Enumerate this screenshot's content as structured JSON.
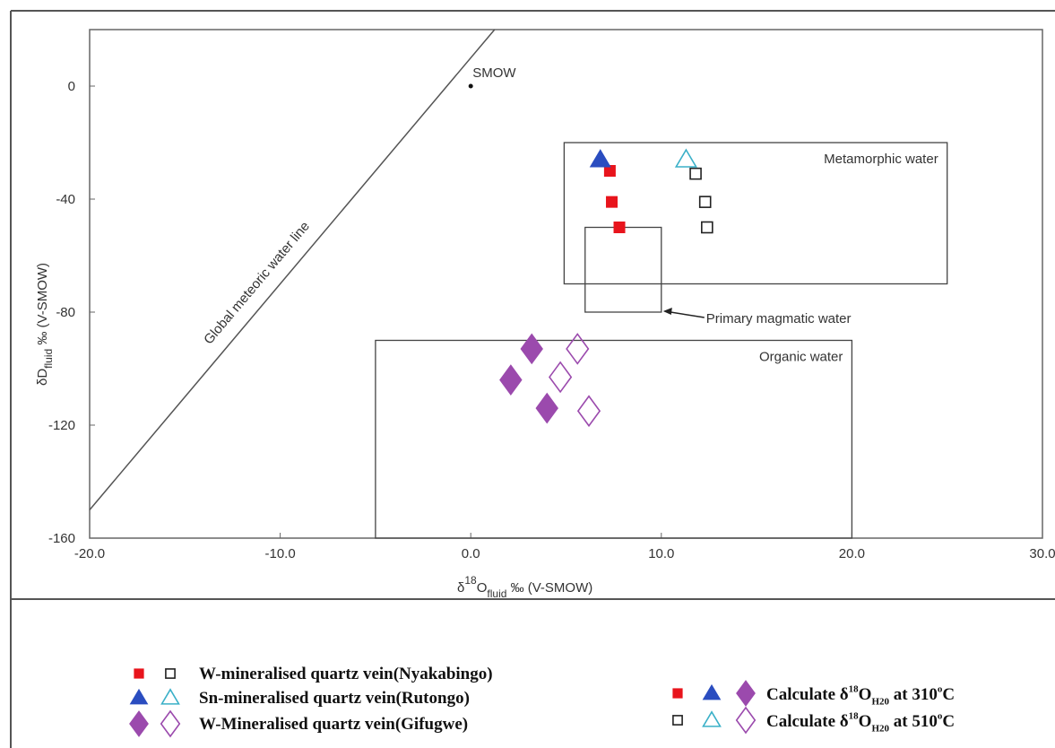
{
  "chart_data": {
    "type": "scatter",
    "x_label": [
      "δ",
      "18",
      "O",
      "fluid",
      " ‰ (V-SMOW)"
    ],
    "y_label": [
      "δD",
      "fluid",
      " ‰ (V-SMOW)"
    ],
    "xlim": [
      -20,
      30
    ],
    "ylim": [
      -160,
      20
    ],
    "xticks": [
      {
        "value": -20,
        "label": "-20.0"
      },
      {
        "value": -10,
        "label": "-10.0"
      },
      {
        "value": 0,
        "label": "0.0"
      },
      {
        "value": 10,
        "label": "10.0"
      },
      {
        "value": 20,
        "label": "20.0"
      },
      {
        "value": 30,
        "label": "30.0"
      }
    ],
    "yticks": [
      0,
      -40,
      -80,
      -120,
      -160
    ],
    "reference_point": {
      "label": "SMOW",
      "x": [
        0
      ],
      "values": [
        0
      ]
    },
    "meteoric_line": {
      "label": "Global meteoric water line",
      "x": [
        -20,
        1.25
      ],
      "values": [
        -150,
        20
      ]
    },
    "regions": [
      {
        "label": "Metamorphic water",
        "x": [
          4.9,
          25
        ],
        "y": [
          -70,
          -20
        ]
      },
      {
        "label": "Primary magmatic water",
        "x": [
          6,
          10
        ],
        "y": [
          -80,
          -50
        ]
      },
      {
        "label": "Organic water",
        "x": [
          -5,
          20
        ],
        "y": [
          -160,
          -90
        ]
      }
    ],
    "series": [
      {
        "name": "W-mineralised quartz vein(Nyakabingo)",
        "marker": "square",
        "color": "#e8141c",
        "open_color": "#222222",
        "filled": {
          "x": [
            7.3,
            7.4,
            7.8
          ],
          "values": [
            -30,
            -41,
            -50
          ]
        },
        "open": {
          "x": [
            11.8,
            12.3,
            12.4
          ],
          "values": [
            -31,
            -41,
            -50
          ]
        }
      },
      {
        "name": "Sn-mineralised quartz vein(Rutongo)",
        "marker": "triangle",
        "color": "#2a4dc0",
        "open_color": "#3ab0c8",
        "filled": {
          "x": [
            6.8
          ],
          "values": [
            -26
          ]
        },
        "open": {
          "x": [
            11.3
          ],
          "values": [
            -26
          ]
        }
      },
      {
        "name": "W-Mineralised quartz vein(Gifugwe)",
        "marker": "diamond",
        "color": "#9b4aad",
        "open_color": "#9b4aad",
        "filled": {
          "x": [
            3.2,
            2.1,
            4.0
          ],
          "values": [
            -93,
            -104,
            -114
          ]
        },
        "open": {
          "x": [
            5.6,
            4.7,
            6.2
          ],
          "values": [
            -93,
            -103,
            -115
          ]
        }
      }
    ],
    "temperature_legend": [
      [
        "Calculate δ",
        "18",
        "O",
        "H20",
        "  at 310",
        "o",
        "C"
      ],
      [
        "Calculate δ",
        "18",
        "O",
        "H20",
        "  at 510",
        "o",
        "C"
      ]
    ]
  }
}
